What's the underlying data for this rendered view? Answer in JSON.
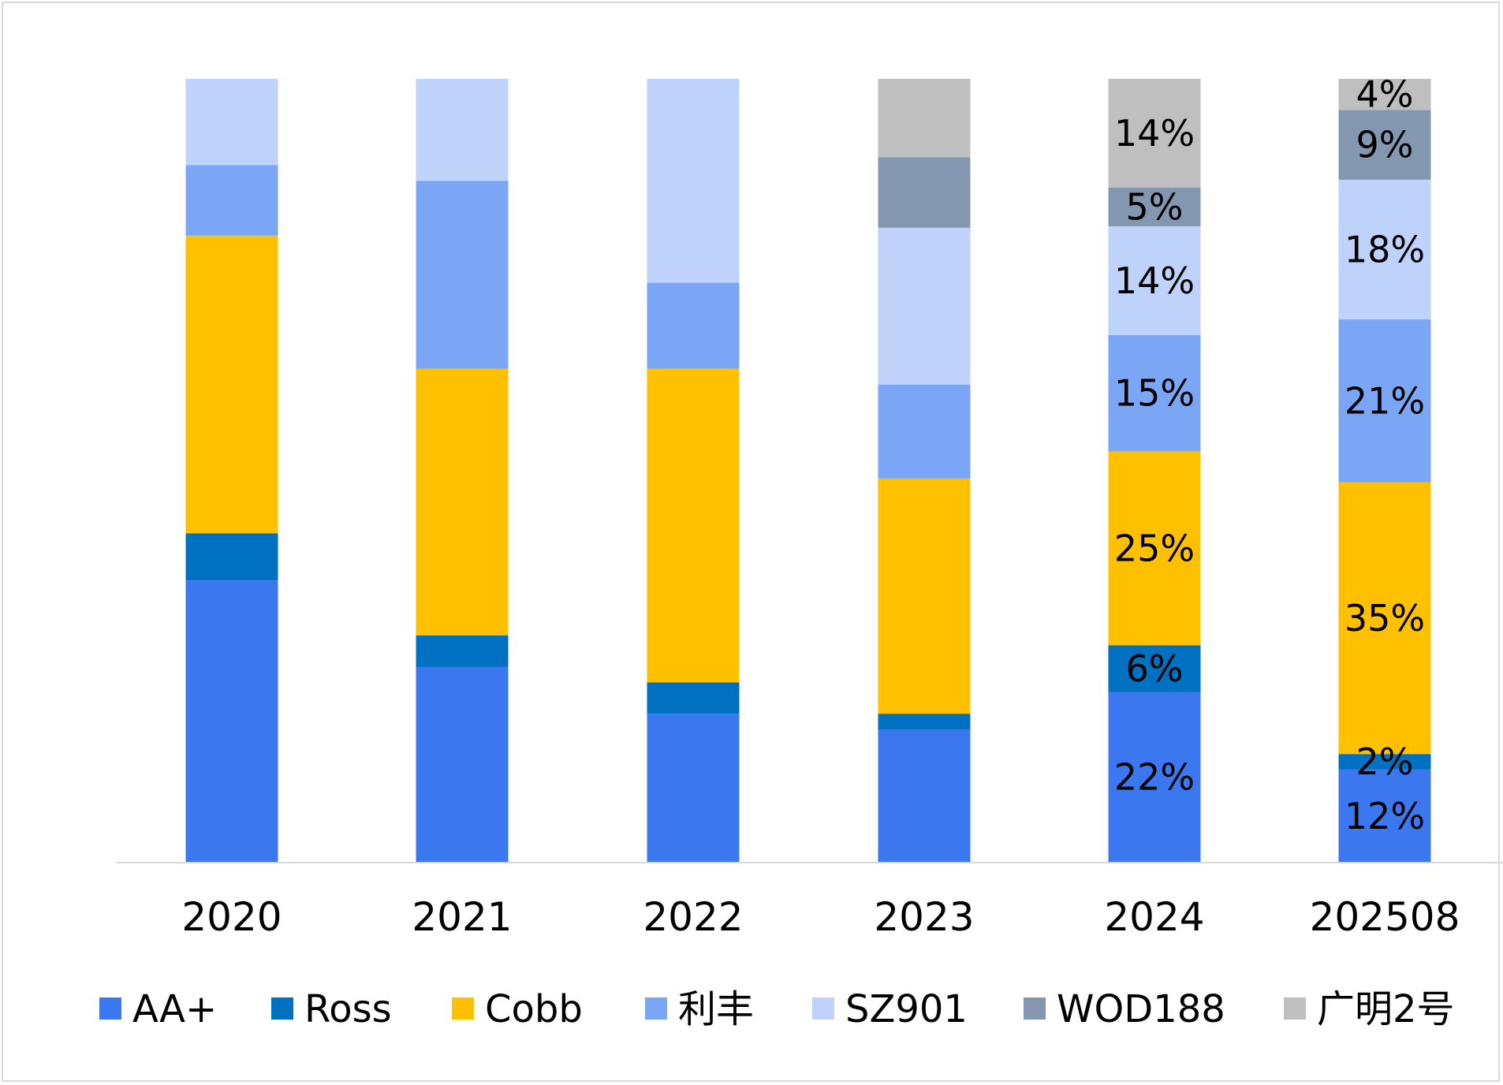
{
  "chart_data": {
    "type": "bar",
    "stacked": true,
    "percent_stacked": true,
    "categories": [
      "2020",
      "2021",
      "2022",
      "2023",
      "2024",
      "202508"
    ],
    "series": [
      {
        "name": "AA+",
        "color": "#3b78f0",
        "values": [
          36,
          25,
          19,
          17,
          22,
          12
        ]
      },
      {
        "name": "Ross",
        "color": "#0070c0",
        "values": [
          6,
          4,
          4,
          2,
          6,
          2
        ]
      },
      {
        "name": "Cobb",
        "color": "#ffc000",
        "values": [
          38,
          34,
          40,
          30,
          25,
          35
        ]
      },
      {
        "name": "利丰",
        "color": "#7ba6f5",
        "values": [
          9,
          24,
          11,
          12,
          15,
          21
        ]
      },
      {
        "name": "SZ901",
        "color": "#bfd2fa",
        "values": [
          11,
          13,
          26,
          20,
          14,
          18
        ]
      },
      {
        "name": "WOD188",
        "color": "#8497b0",
        "values": [
          0,
          0,
          0,
          9,
          5,
          9
        ]
      },
      {
        "name": "广明2号",
        "color": "#bfbfbf",
        "values": [
          0,
          0,
          0,
          10,
          14,
          4
        ]
      }
    ],
    "data_labels": {
      "2024": [
        "22%",
        "6%",
        "25%",
        "15%",
        "14%",
        "5%",
        "14%"
      ],
      "202508": [
        "12%",
        "2%",
        "35%",
        "21%",
        "18%",
        "9%",
        "4%"
      ]
    },
    "ylim": [
      0,
      100
    ],
    "grid": false,
    "legend": "bottom"
  }
}
